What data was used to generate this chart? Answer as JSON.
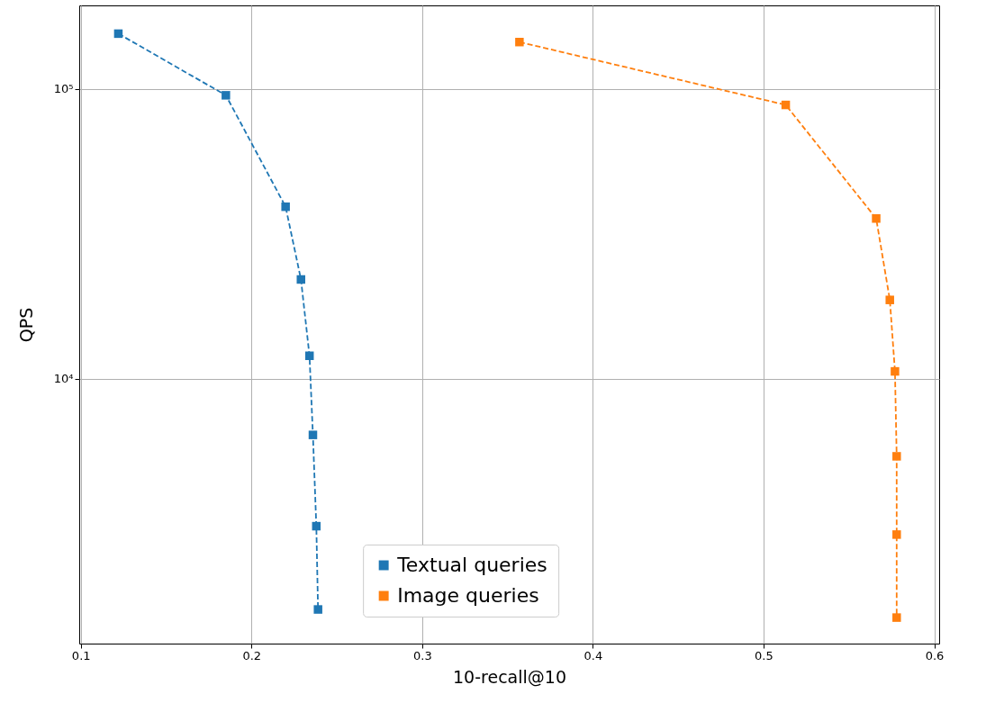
{
  "chart_data": {
    "type": "line",
    "xlabel": "10-recall@10",
    "ylabel": "QPS",
    "xlim": [
      0.0991,
      0.6029
    ],
    "xticks": [
      0.1,
      0.2,
      0.3,
      0.4,
      0.5,
      0.6
    ],
    "ylim": [
      1220,
      194000
    ],
    "yticks": [
      {
        "value": 10000,
        "label": "10⁴"
      },
      {
        "value": 100000,
        "label": "10⁵"
      }
    ],
    "log": "y",
    "grid": true,
    "legend": "bottom",
    "marker": "square",
    "line_style": "dashed",
    "series": [
      {
        "name": "Textual queries",
        "color": "#1f77b4",
        "x": [
          0.122,
          0.185,
          0.22,
          0.229,
          0.234,
          0.236,
          0.238,
          0.239
        ],
        "values": [
          155000,
          95000,
          39200,
          22000,
          12000,
          6400,
          3100,
          1600
        ]
      },
      {
        "name": "Image queries",
        "color": "#ff7f0e",
        "x": [
          0.357,
          0.513,
          0.566,
          0.574,
          0.577,
          0.578,
          0.578,
          0.578
        ],
        "values": [
          145000,
          88000,
          35700,
          18700,
          10600,
          5400,
          2900,
          1500
        ]
      }
    ]
  }
}
